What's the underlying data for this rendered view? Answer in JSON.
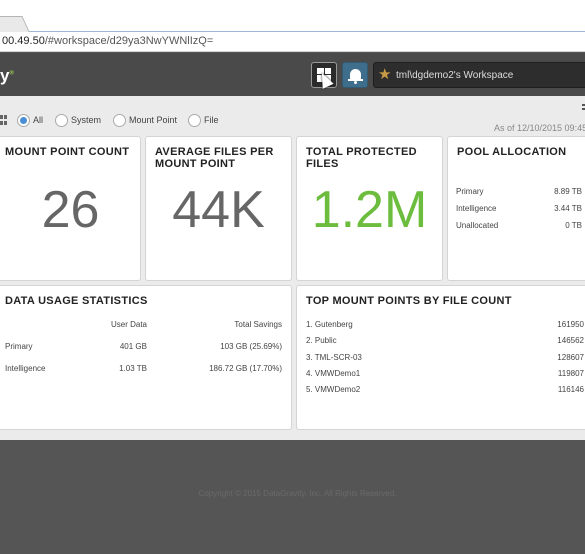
{
  "browser": {
    "url_host": "00.49.50",
    "url_path": "/#workspace/d29ya3NwYWNlIzQ="
  },
  "header": {
    "logo_fragment": "y",
    "workspace_name": "tml\\dgdemo2's Workspace",
    "icons": [
      "layout-icon",
      "bell-icon",
      "star-icon"
    ]
  },
  "filters": {
    "options": [
      "All",
      "System",
      "Mount Point",
      "File"
    ],
    "selected": "All",
    "as_of": "As of 12/10/2015 09:45"
  },
  "cards": {
    "mount_point_count": {
      "title": "MOUNT POINT COUNT",
      "value": "26"
    },
    "avg_files": {
      "title": "AVERAGE FILES PER MOUNT POINT",
      "value": "44K"
    },
    "total_protected": {
      "title": "TOTAL PROTECTED FILES",
      "value": "1.2M",
      "color": "#6cbd3d"
    },
    "pool_allocation": {
      "title": "POOL ALLOCATION",
      "rows": [
        {
          "label": "Primary",
          "value": "8.89 TB"
        },
        {
          "label": "Intelligence",
          "value": "3.44 TB"
        },
        {
          "label": "Unallocated",
          "value": "0 TB"
        }
      ]
    },
    "data_usage": {
      "title": "DATA USAGE STATISTICS",
      "col_user": "User Data",
      "col_savings": "Total Savings",
      "rows": [
        {
          "label": "Primary",
          "user": "401 GB",
          "savings": "103 GB (25.69%)"
        },
        {
          "label": "Intelligence",
          "user": "1.03 TB",
          "savings": "186.72 GB (17.70%)"
        }
      ]
    },
    "top_mount_points": {
      "title": "TOP MOUNT POINTS BY FILE COUNT",
      "rows": [
        {
          "name": "1. Gutenberg",
          "count": "161950"
        },
        {
          "name": "2. Public",
          "count": "146562"
        },
        {
          "name": "3. TML-SCR-03",
          "count": "128607"
        },
        {
          "name": "4. VMWDemo1",
          "count": "119807"
        },
        {
          "name": "5. VMWDemo2",
          "count": "116146"
        }
      ]
    }
  },
  "footer": {
    "copyright": "Copyright © 2015 DataGravity, Inc. All Rights Reserved."
  }
}
